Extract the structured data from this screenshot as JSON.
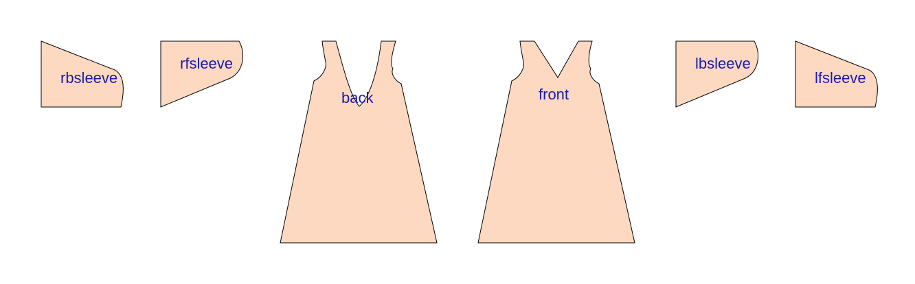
{
  "colors": {
    "fabric": "#fdd9c1",
    "outline": "#000000",
    "label": "#1a1aaa"
  },
  "pieces": {
    "rbsleeve": {
      "label": "rbsleeve"
    },
    "rfsleeve": {
      "label": "rfsleeve"
    },
    "back": {
      "label": "back"
    },
    "front": {
      "label": "front"
    },
    "lbsleeve": {
      "label": "lbsleeve"
    },
    "lfsleeve": {
      "label": "lfsleeve"
    }
  }
}
